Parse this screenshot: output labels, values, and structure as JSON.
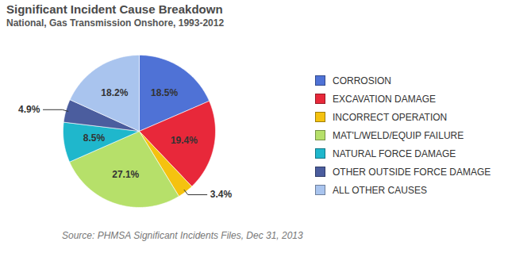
{
  "chart_data": {
    "type": "pie",
    "title": "Significant Incident Cause Breakdown",
    "subtitle": "National, Gas Transmission Onshore, 1993-2012",
    "caption": "Source: PHMSA Significant Incidents Files, Dec 31, 2013",
    "categories": [
      "CORROSION",
      "EXCAVATION DAMAGE",
      "INCORRECT OPERATION",
      "MAT'L/WELD/EQUIP FAILURE",
      "NATURAL FORCE DAMAGE",
      "OTHER OUTSIDE FORCE DAMAGE",
      "ALL OTHER CAUSES"
    ],
    "values": [
      18.5,
      19.4,
      3.4,
      27.1,
      8.5,
      4.9,
      18.2
    ],
    "value_labels": [
      "18.5%",
      "19.4%",
      "3.4%",
      "27.1%",
      "8.5%",
      "4.9%",
      "18.2%"
    ],
    "colors": [
      "#4f72d6",
      "#e8283a",
      "#f5c20f",
      "#b6e06a",
      "#1fb7cc",
      "#4b5d9e",
      "#a9c4ee"
    ],
    "data_labels": true,
    "legend": "right"
  }
}
